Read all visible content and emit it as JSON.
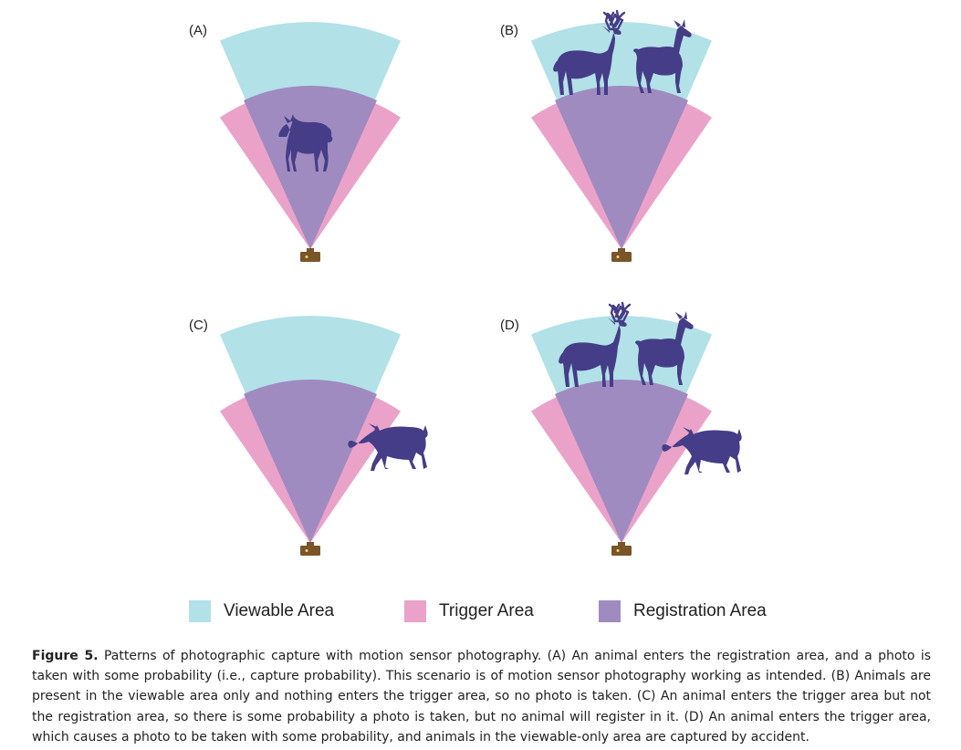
{
  "panels": [
    {
      "label": "(A)"
    },
    {
      "label": "(B)"
    },
    {
      "label": "(C)"
    },
    {
      "label": "(D)"
    }
  ],
  "legend": {
    "viewable": {
      "label": "Viewable Area",
      "color": "#b2e1e8"
    },
    "trigger": {
      "label": "Trigger Area",
      "color": "#eba2c9"
    },
    "registration": {
      "label": "Registration Area",
      "color": "#a08bc0"
    }
  },
  "colors": {
    "animal": "#453d87",
    "camera": "#7a5528",
    "camera_lens": "#f5d67c"
  },
  "caption": {
    "figure_label": "Figure 5.",
    "text": "Patterns of photographic capture with motion sensor photography. (A) An animal enters the registration area, and a photo is taken with some probability (i.e., capture probability). This scenario is of motion sensor photography working as intended. (B) Animals are present in the viewable area only and nothing enters the trigger area, so no photo is taken. (C) An animal enters the trigger area but not the registration area, so there is some probability a photo is taken, but no animal will register in it. (D) An animal enters the trigger area, which causes a photo to be taken with some probability, and animals in the viewable-only area are captured by accident."
  }
}
